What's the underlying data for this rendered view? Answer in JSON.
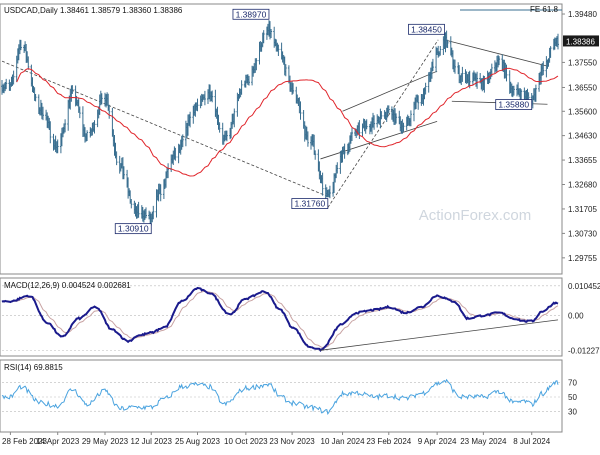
{
  "chart_data": {
    "type": "ohlc",
    "title": "USDCAD,Daily  1.38461 1.38579 1.38360 1.38386",
    "fib_label": "FE 61.8",
    "current_price_label": "1.38386",
    "watermark": "ActionForex.com",
    "colors": {
      "bars": "#3a6f90",
      "ma": "#e0242a",
      "macd": "#1a1a8c",
      "signal": "#c9a4a4",
      "rsi": "#4aa3df",
      "trend": "#444444"
    },
    "x_labels": [
      "28 Feb 2023",
      "14 Apr 2023",
      "29 May 2023",
      "12 Jul 2023",
      "25 Aug 2023",
      "10 Oct 2023",
      "23 Nov 2023",
      "10 Jan 2024",
      "23 Feb 2024",
      "9 Apr 2024",
      "23 May 2024",
      "8 Jul 2024"
    ],
    "price": {
      "yaxis_ticks": [
        "1.39480",
        "1.37550",
        "1.36550",
        "1.35600",
        "1.34630",
        "1.33655",
        "1.32680",
        "1.31705",
        "1.30730",
        "1.29755"
      ],
      "ylim": [
        1.2927,
        1.3972
      ],
      "annotations": [
        "1.38970",
        "1.38450",
        "1.35880",
        "1.31760",
        "1.30910"
      ],
      "anchors": [
        [
          "28 Feb 2023",
          1.366
        ],
        [
          "10 Mar 2023",
          1.383
        ],
        [
          "28 Mar 2023",
          1.357
        ],
        [
          "14 Apr 2023",
          1.342
        ],
        [
          "28 Apr 2023",
          1.363
        ],
        [
          "12 May 2023",
          1.346
        ],
        [
          "29 May 2023",
          1.362
        ],
        [
          "12 Jun 2023",
          1.334
        ],
        [
          "27 Jun 2023",
          1.316
        ],
        [
          "5 Jul 2023",
          1.315
        ],
        [
          "12 Jul 2023",
          1.313
        ],
        [
          "20 Jul 2023",
          1.324
        ],
        [
          "3 Aug 2023",
          1.338
        ],
        [
          "25 Aug 2023",
          1.358
        ],
        [
          "5 Sep 2023",
          1.364
        ],
        [
          "20 Sep 2023",
          1.345
        ],
        [
          "10 Oct 2023",
          1.368
        ],
        [
          "1 Nov 2023",
          1.388
        ],
        [
          "10 Nov 2023",
          1.38
        ],
        [
          "23 Nov 2023",
          1.365
        ],
        [
          "10 Dec 2023",
          1.344
        ],
        [
          "27 Dec 2023",
          1.322
        ],
        [
          "10 Jan 2024",
          1.339
        ],
        [
          "23 Jan 2024",
          1.348
        ],
        [
          "5 Feb 2024",
          1.351
        ],
        [
          "23 Feb 2024",
          1.356
        ],
        [
          "8 Mar 2024",
          1.35
        ],
        [
          "25 Mar 2024",
          1.362
        ],
        [
          "9 Apr 2024",
          1.378
        ],
        [
          "16 Apr 2024",
          1.384
        ],
        [
          "1 May 2024",
          1.37
        ],
        [
          "23 May 2024",
          1.367
        ],
        [
          "7 Jun 2024",
          1.376
        ],
        [
          "21 Jun 2024",
          1.364
        ],
        [
          "28 Jun 2024",
          1.363
        ],
        [
          "8 Jul 2024",
          1.361
        ],
        [
          "18 Jul 2024",
          1.372
        ],
        [
          "31 Jul 2024",
          1.384
        ]
      ]
    },
    "macd": {
      "label": "MACD(12,26,9) 0.004524 0.002681",
      "yaxis_ticks": [
        "0.010452",
        "0.00",
        "-0.012276"
      ],
      "ylim": [
        -0.0128,
        0.0118
      ],
      "anchors": [
        [
          "28 Feb 2023",
          0.005
        ],
        [
          "18 Mar 2023",
          0.007
        ],
        [
          "4 Apr 2023",
          -0.0025
        ],
        [
          "18 Apr 2023",
          -0.0075
        ],
        [
          "4 May 2023",
          -0.001
        ],
        [
          "20 May 2023",
          0.003
        ],
        [
          "5 Jun 2023",
          -0.005
        ],
        [
          "20 Jun 2023",
          -0.009
        ],
        [
          "30 Jun 2023",
          -0.007
        ],
        [
          "12 Jul 2023",
          -0.006
        ],
        [
          "25 Jul 2023",
          -0.004
        ],
        [
          "10 Aug 2023",
          0.005
        ],
        [
          "25 Aug 2023",
          0.0095
        ],
        [
          "5 Sep 2023",
          0.008
        ],
        [
          "25 Sep 2023",
          0.0005
        ],
        [
          "10 Oct 2023",
          0.006
        ],
        [
          "28 Oct 2023",
          0.0085
        ],
        [
          "12 Nov 2023",
          0.002
        ],
        [
          "23 Nov 2023",
          -0.004
        ],
        [
          "10 Dec 2023",
          -0.011
        ],
        [
          "20 Dec 2023",
          -0.012
        ],
        [
          "10 Jan 2024",
          -0.003
        ],
        [
          "23 Jan 2024",
          0.001
        ],
        [
          "10 Feb 2024",
          0.002
        ],
        [
          "23 Feb 2024",
          0.003
        ],
        [
          "10 Mar 2024",
          0.001
        ],
        [
          "25 Mar 2024",
          0.003
        ],
        [
          "9 Apr 2024",
          0.007
        ],
        [
          "25 Apr 2024",
          0.005
        ],
        [
          "8 May 2024",
          -0.001
        ],
        [
          "23 May 2024",
          0.0
        ],
        [
          "7 Jun 2024",
          0.001
        ],
        [
          "21 Jun 2024",
          -0.001
        ],
        [
          "1 Jul 2024",
          -0.002
        ],
        [
          "8 Jul 2024",
          -0.002
        ],
        [
          "18 Jul 2024",
          0.0015
        ],
        [
          "31 Jul 2024",
          0.0045
        ]
      ]
    },
    "rsi": {
      "label": "RSI(14) 69.8815",
      "yaxis_ticks": [
        "70",
        "50",
        "30"
      ],
      "ylim": [
        5,
        95
      ],
      "anchors": [
        [
          "28 Feb 2023",
          50
        ],
        [
          "10 Mar 2023",
          64
        ],
        [
          "28 Mar 2023",
          42
        ],
        [
          "14 Apr 2023",
          38
        ],
        [
          "28 Apr 2023",
          60
        ],
        [
          "12 May 2023",
          40
        ],
        [
          "29 May 2023",
          58
        ],
        [
          "12 Jun 2023",
          34
        ],
        [
          "27 Jun 2023",
          36
        ],
        [
          "12 Jul 2023",
          36
        ],
        [
          "25 Jul 2023",
          48
        ],
        [
          "10 Aug 2023",
          64
        ],
        [
          "25 Aug 2023",
          67
        ],
        [
          "5 Sep 2023",
          64
        ],
        [
          "20 Sep 2023",
          40
        ],
        [
          "10 Oct 2023",
          62
        ],
        [
          "1 Nov 2023",
          67
        ],
        [
          "12 Nov 2023",
          50
        ],
        [
          "23 Nov 2023",
          42
        ],
        [
          "10 Dec 2023",
          36
        ],
        [
          "27 Dec 2023",
          30
        ],
        [
          "10 Jan 2024",
          54
        ],
        [
          "23 Jan 2024",
          56
        ],
        [
          "10 Feb 2024",
          50
        ],
        [
          "23 Feb 2024",
          52
        ],
        [
          "10 Mar 2024",
          48
        ],
        [
          "25 Mar 2024",
          55
        ],
        [
          "9 Apr 2024",
          68
        ],
        [
          "16 Apr 2024",
          72
        ],
        [
          "1 May 2024",
          50
        ],
        [
          "23 May 2024",
          50
        ],
        [
          "7 Jun 2024",
          58
        ],
        [
          "21 Jun 2024",
          42
        ],
        [
          "1 Jul 2024",
          44
        ],
        [
          "8 Jul 2024",
          40
        ],
        [
          "18 Jul 2024",
          55
        ],
        [
          "31 Jul 2024",
          70
        ]
      ]
    }
  }
}
